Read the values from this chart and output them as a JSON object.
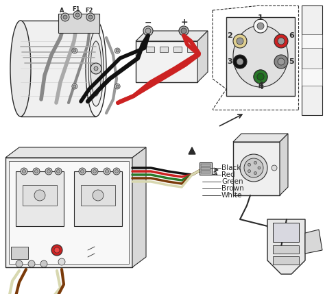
{
  "bg_color": "#ffffff",
  "lc": "#2a2a2a",
  "gray1": "#999999",
  "gray2": "#bbbbbb",
  "gray3": "#dddddd",
  "gray4": "#eeeeee",
  "black_wire": "#111111",
  "red_wire": "#cc2222",
  "green_wire": "#2a7a2a",
  "brown_wire": "#7a3a0a",
  "white_wire": "#d8d8b0",
  "yellow_wire": "#e8e850",
  "figsize": [
    4.74,
    4.29
  ],
  "dpi": 100,
  "labels": {
    "A": "A",
    "F1": "F1",
    "F2": "F2",
    "minus": "−",
    "plus": "+",
    "1": "1",
    "2": "2",
    "3": "3",
    "4": "4",
    "5": "5",
    "6": "6",
    "Black": "Black",
    "Red": "Red",
    "Green": "Green",
    "Brown": "Brown",
    "White": "White"
  }
}
